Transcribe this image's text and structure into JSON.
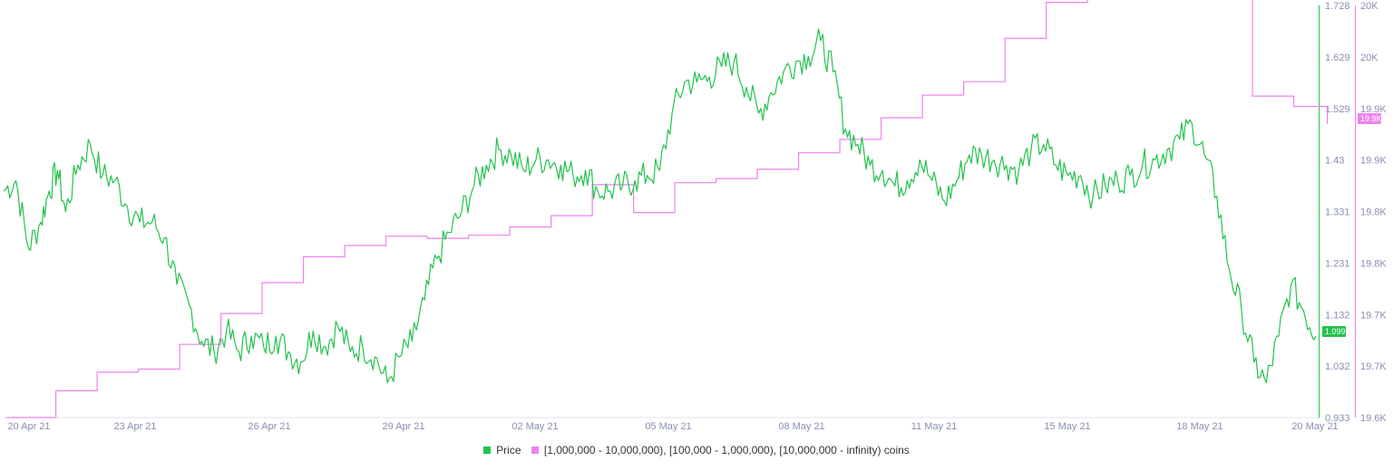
{
  "chart_data": {
    "type": "line",
    "x_tick_labels": [
      "20 Apr 21",
      "23 Apr 21",
      "26 Apr 21",
      "29 Apr 21",
      "02 May 21",
      "05 May 21",
      "08 May 21",
      "11 May 21",
      "15 May 21",
      "18 May 21",
      "20 May 21"
    ],
    "y_left": {
      "ticks": [
        "1.728",
        "1.629",
        "1.529",
        "1.43",
        "1.331",
        "1.231",
        "1.132",
        "1.032",
        "0.933"
      ],
      "range": [
        0.933,
        1.728
      ]
    },
    "y_right": {
      "ticks": [
        "20K",
        "20K",
        "19.9K",
        "19.9K",
        "19.8K",
        "19.8K",
        "19.7K",
        "19.7K",
        "19.6K"
      ],
      "range": [
        19600,
        20000
      ]
    },
    "x_range_days": [
      0,
      30
    ],
    "grid": false,
    "legend_position": "bottom",
    "series": [
      {
        "name": "Price",
        "color": "#23c24d",
        "axis": "left",
        "points": [
          [
            0.0,
            1.37
          ],
          [
            0.3,
            1.39
          ],
          [
            0.6,
            1.26
          ],
          [
            0.9,
            1.31
          ],
          [
            1.1,
            1.37
          ],
          [
            1.3,
            1.41
          ],
          [
            1.5,
            1.33
          ],
          [
            1.8,
            1.42
          ],
          [
            2.1,
            1.46
          ],
          [
            2.4,
            1.4
          ],
          [
            2.7,
            1.39
          ],
          [
            3.0,
            1.34
          ],
          [
            3.3,
            1.31
          ],
          [
            3.6,
            1.31
          ],
          [
            3.9,
            1.28
          ],
          [
            4.2,
            1.19
          ],
          [
            4.5,
            1.15
          ],
          [
            4.8,
            1.08
          ],
          [
            5.1,
            1.06
          ],
          [
            5.4,
            1.1
          ],
          [
            5.7,
            1.06
          ],
          [
            6.0,
            1.09
          ],
          [
            6.3,
            1.07
          ],
          [
            6.6,
            1.09
          ],
          [
            6.9,
            1.06
          ],
          [
            7.2,
            1.04
          ],
          [
            7.5,
            1.1
          ],
          [
            7.8,
            1.07
          ],
          [
            8.1,
            1.11
          ],
          [
            8.4,
            1.06
          ],
          [
            8.7,
            1.07
          ],
          [
            9.0,
            1.05
          ],
          [
            9.3,
            1.0
          ],
          [
            9.6,
            1.05
          ],
          [
            9.9,
            1.08
          ],
          [
            10.2,
            1.16
          ],
          [
            10.5,
            1.24
          ],
          [
            10.8,
            1.29
          ],
          [
            11.1,
            1.33
          ],
          [
            11.4,
            1.38
          ],
          [
            11.7,
            1.42
          ],
          [
            12.0,
            1.45
          ],
          [
            12.3,
            1.44
          ],
          [
            12.6,
            1.41
          ],
          [
            12.9,
            1.43
          ],
          [
            13.2,
            1.43
          ],
          [
            13.5,
            1.42
          ],
          [
            13.8,
            1.4
          ],
          [
            14.1,
            1.41
          ],
          [
            14.4,
            1.37
          ],
          [
            14.7,
            1.37
          ],
          [
            15.0,
            1.38
          ],
          [
            15.3,
            1.39
          ],
          [
            15.6,
            1.4
          ],
          [
            15.9,
            1.41
          ],
          [
            16.2,
            1.52
          ],
          [
            16.5,
            1.58
          ],
          [
            16.8,
            1.58
          ],
          [
            17.1,
            1.59
          ],
          [
            17.4,
            1.61
          ],
          [
            17.7,
            1.62
          ],
          [
            18.0,
            1.57
          ],
          [
            18.3,
            1.52
          ],
          [
            18.6,
            1.56
          ],
          [
            18.9,
            1.6
          ],
          [
            19.2,
            1.62
          ],
          [
            19.5,
            1.63
          ],
          [
            19.8,
            1.66
          ],
          [
            20.1,
            1.6
          ],
          [
            20.4,
            1.49
          ],
          [
            20.7,
            1.46
          ],
          [
            21.0,
            1.42
          ],
          [
            21.3,
            1.41
          ],
          [
            21.6,
            1.38
          ],
          [
            21.9,
            1.39
          ],
          [
            22.2,
            1.43
          ],
          [
            22.5,
            1.39
          ],
          [
            22.8,
            1.35
          ],
          [
            23.1,
            1.39
          ],
          [
            23.4,
            1.44
          ],
          [
            23.7,
            1.44
          ],
          [
            24.0,
            1.43
          ],
          [
            24.3,
            1.42
          ],
          [
            24.6,
            1.41
          ],
          [
            24.9,
            1.45
          ],
          [
            25.2,
            1.46
          ],
          [
            25.5,
            1.42
          ],
          [
            25.8,
            1.4
          ],
          [
            26.1,
            1.4
          ],
          [
            26.4,
            1.36
          ],
          [
            26.7,
            1.38
          ],
          [
            27.0,
            1.39
          ],
          [
            27.3,
            1.4
          ],
          [
            27.6,
            1.42
          ],
          [
            27.9,
            1.43
          ],
          [
            28.2,
            1.45
          ],
          [
            28.5,
            1.47
          ],
          [
            28.8,
            1.5
          ],
          [
            29.1,
            1.44
          ],
          [
            29.4,
            1.36
          ],
          [
            29.7,
            1.22
          ],
          [
            30.0,
            1.14
          ],
          [
            30.3,
            1.04
          ],
          [
            30.6,
            1.0
          ],
          [
            30.9,
            1.09
          ],
          [
            31.2,
            1.19
          ],
          [
            31.5,
            1.14
          ],
          [
            31.8,
            1.09
          ]
        ]
      },
      {
        "name": "[1,000,000 - 10,000,000), [100,000  - 1,000,000), [10,000,000 - infinity) coins",
        "color": "#ee82ee",
        "axis": "right",
        "steps": [
          [
            0.0,
            19600
          ],
          [
            1.2,
            19626
          ],
          [
            2.2,
            19644
          ],
          [
            3.2,
            19647
          ],
          [
            4.2,
            19671
          ],
          [
            5.2,
            19701
          ],
          [
            6.2,
            19731
          ],
          [
            7.2,
            19756
          ],
          [
            8.2,
            19767
          ],
          [
            9.2,
            19776
          ],
          [
            10.2,
            19774
          ],
          [
            11.2,
            19777
          ],
          [
            12.2,
            19785
          ],
          [
            13.2,
            19796
          ],
          [
            14.2,
            19826
          ],
          [
            15.2,
            19799
          ],
          [
            16.2,
            19828
          ],
          [
            17.2,
            19832
          ],
          [
            18.2,
            19841
          ],
          [
            19.2,
            19857
          ],
          [
            20.2,
            19870
          ],
          [
            21.2,
            19891
          ],
          [
            22.2,
            19913
          ],
          [
            23.2,
            19926
          ],
          [
            24.2,
            19968
          ],
          [
            25.2,
            20003
          ],
          [
            26.2,
            20019
          ],
          [
            27.2,
            20022
          ],
          [
            28.2,
            20025
          ],
          [
            29.2,
            20017
          ],
          [
            30.2,
            19912
          ],
          [
            31.2,
            19902
          ]
        ]
      }
    ],
    "price_badge": "1.099",
    "right_badge": "19.9K"
  }
}
